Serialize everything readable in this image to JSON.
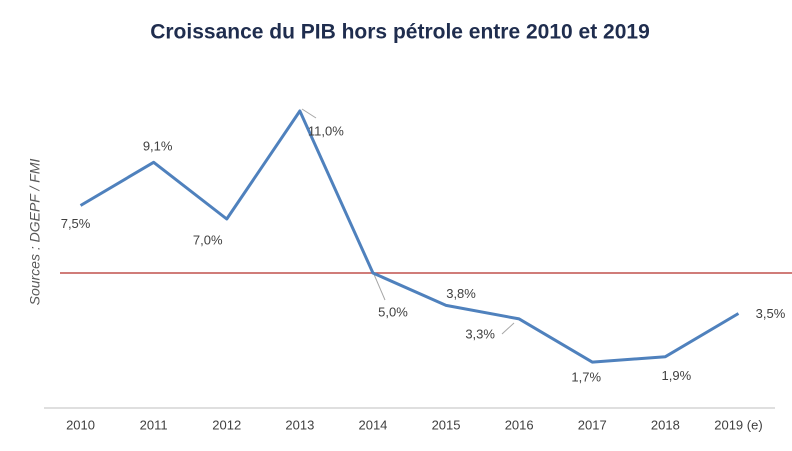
{
  "chart_data": {
    "type": "line",
    "title": "Croissance du PIB hors pétrole entre 2010 et 2019",
    "y_label": "Sources : DGEPF / FMI",
    "categories": [
      "2010",
      "2011",
      "2012",
      "2013",
      "2014",
      "2015",
      "2016",
      "2017",
      "2018",
      "2019 (e)"
    ],
    "series": [
      {
        "color": "#4f81bd",
        "values": [
          7.5,
          9.1,
          7.0,
          11.0,
          5.0,
          3.8,
          3.3,
          1.7,
          1.9,
          3.5
        ],
        "value_labels": [
          "7,5%",
          "9,1%",
          "7,0%",
          "11,0%",
          "5,0%",
          "3,8%",
          "3,3%",
          "1,7%",
          "1,9%",
          "3,5%"
        ]
      }
    ],
    "reference_line": {
      "value": 5.0,
      "color": "#c0504d"
    },
    "ylim": [
      0,
      13
    ]
  }
}
